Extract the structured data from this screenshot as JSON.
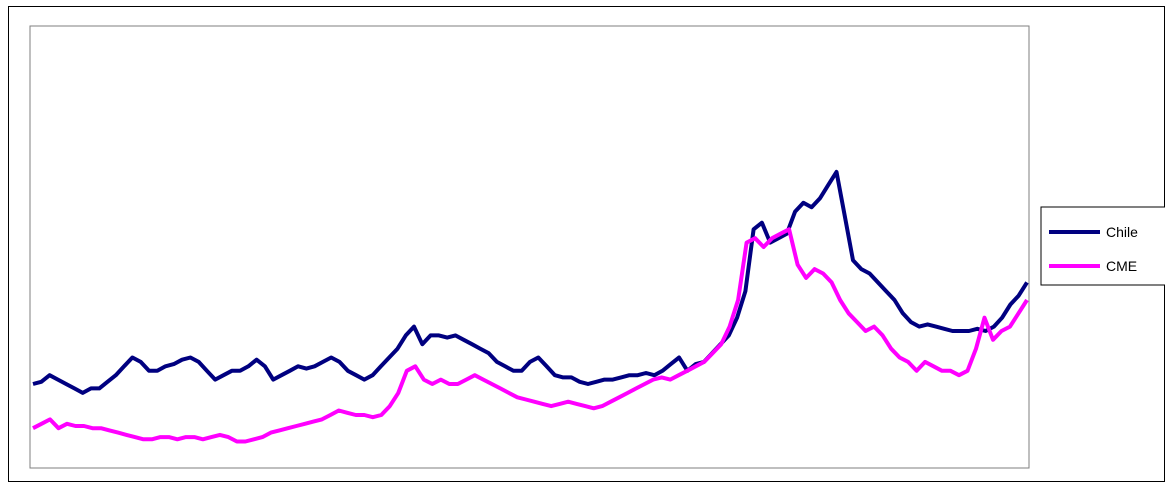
{
  "chart_data": {
    "type": "line",
    "title": "",
    "xlabel": "",
    "ylabel": "",
    "ylim": [
      0,
      100
    ],
    "grid": false,
    "legend": "right",
    "series": [
      {
        "name": "Chile",
        "color": "#000080",
        "values": [
          19,
          19.5,
          21,
          20,
          19,
          18,
          17,
          18,
          18,
          19.5,
          21,
          23,
          25,
          24,
          22,
          22,
          23,
          23.5,
          24.5,
          25,
          24,
          22,
          20,
          21,
          22,
          22,
          23,
          24.5,
          23,
          20,
          21,
          22,
          23,
          22.5,
          23,
          24,
          25,
          24,
          22,
          21,
          20,
          21,
          23,
          25,
          27,
          30,
          32,
          28,
          30,
          30,
          29.5,
          30,
          29,
          28,
          27,
          26,
          24,
          23,
          22,
          22,
          24,
          25,
          23,
          21,
          20.5,
          20.5,
          19.5,
          19,
          19.5,
          20,
          20,
          20.5,
          21,
          21,
          21.5,
          21,
          22,
          23.5,
          25,
          22,
          23.5,
          24,
          26,
          28,
          30,
          34,
          40,
          54,
          55.5,
          51,
          52,
          53,
          58,
          60,
          59,
          61,
          64,
          67,
          57,
          47,
          45,
          44,
          42,
          40,
          38,
          35,
          33,
          32,
          32.5,
          32,
          31.5,
          31,
          31,
          31,
          31.5,
          31,
          32,
          34,
          37,
          39,
          42
        ]
      },
      {
        "name": "CME",
        "color": "#ff00ff",
        "values": [
          9,
          10,
          11,
          9,
          10,
          9.5,
          9.5,
          9,
          9,
          8.5,
          8,
          7.5,
          7,
          6.5,
          6.5,
          7,
          7,
          6.5,
          7,
          7,
          6.5,
          7,
          7.5,
          7,
          6,
          6,
          6.5,
          7,
          8,
          8.5,
          9,
          9.5,
          10,
          10.5,
          11,
          12,
          13,
          12.5,
          12,
          12,
          11.5,
          12,
          14,
          17,
          22,
          23,
          20,
          19,
          20,
          19,
          19,
          20,
          21,
          20,
          19,
          18,
          17,
          16,
          15.5,
          15,
          14.5,
          14,
          14.5,
          15,
          14.5,
          14,
          13.5,
          14,
          15,
          16,
          17,
          18,
          19,
          20,
          20.5,
          20,
          21,
          22,
          23,
          24,
          26,
          28,
          32,
          38,
          51,
          52,
          50,
          52,
          53,
          54,
          46,
          43,
          45,
          44,
          42,
          38,
          35,
          33,
          31,
          32,
          30,
          27,
          25,
          24,
          22,
          24,
          23,
          22,
          22,
          21,
          22,
          27,
          34,
          29,
          31,
          32,
          35,
          38
        ]
      }
    ]
  }
}
